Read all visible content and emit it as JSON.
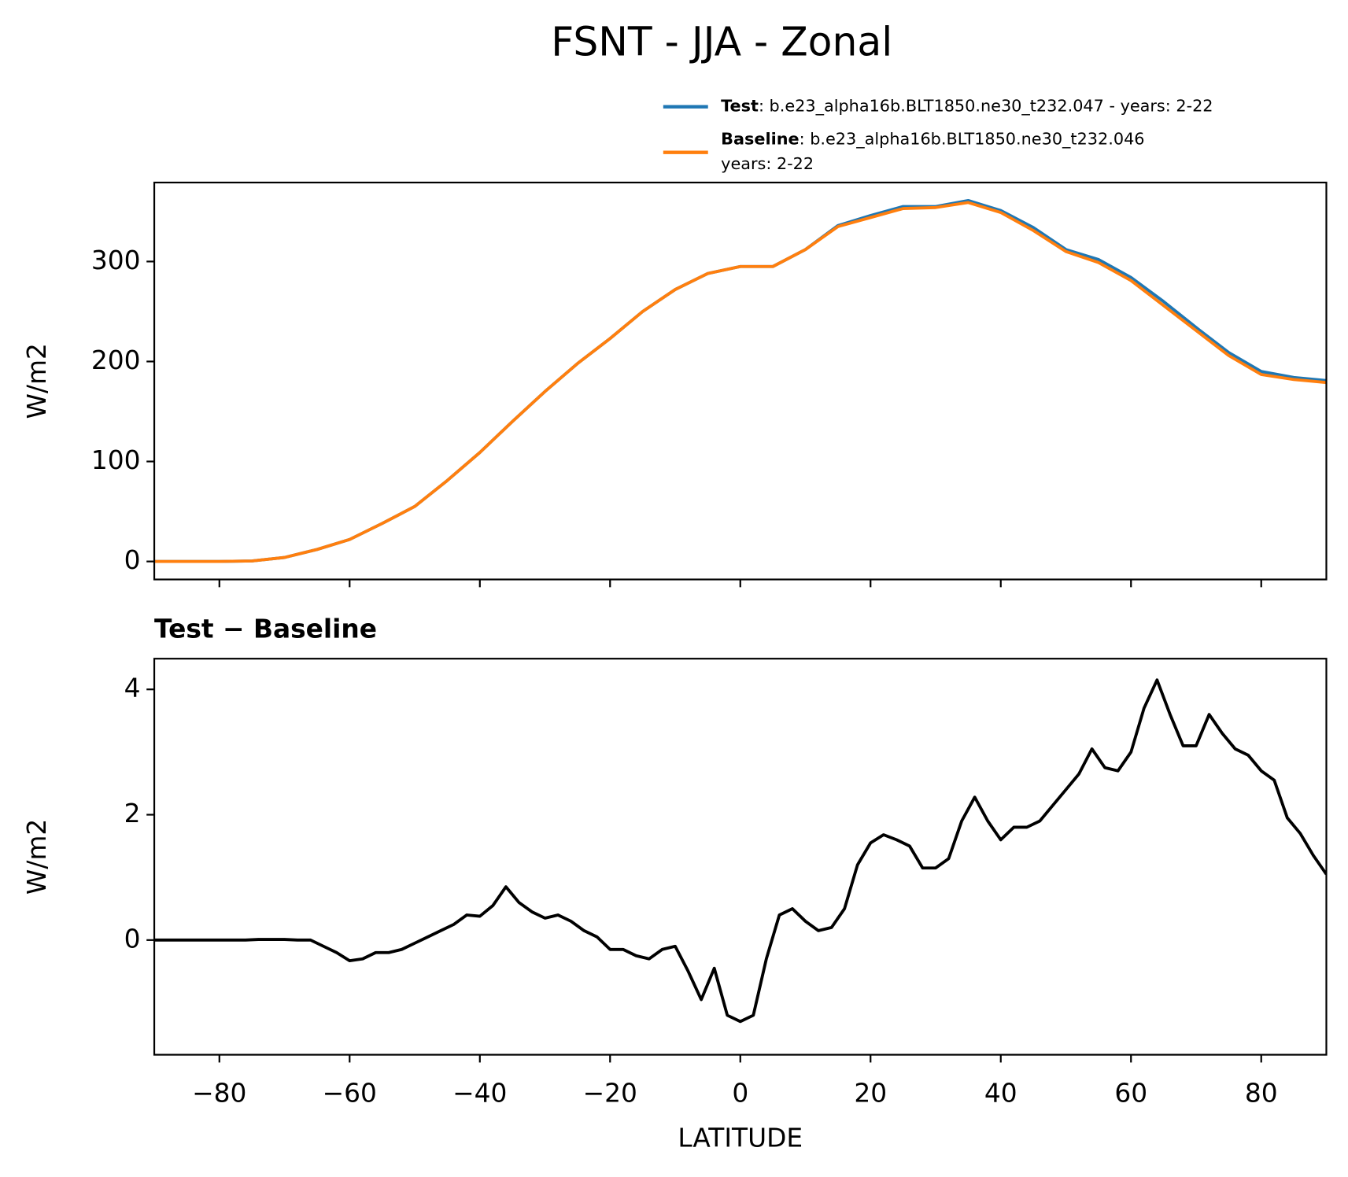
{
  "title": "FSNT - JJA - Zonal",
  "chart_data": [
    {
      "type": "line",
      "ylabel": "W/m2",
      "x": [
        -90,
        -85,
        -80,
        -75,
        -70,
        -65,
        -60,
        -55,
        -50,
        -45,
        -40,
        -35,
        -30,
        -25,
        -20,
        -15,
        -10,
        -5,
        0,
        5,
        10,
        15,
        20,
        25,
        30,
        35,
        40,
        45,
        50,
        55,
        60,
        65,
        70,
        75,
        80,
        85,
        90
      ],
      "series": [
        {
          "name": "Test",
          "description_lines": [
            ": b.e23_alpha16b.BLT1850.ne30_t232.047 - years: 2-22"
          ],
          "color": "#1f77b4",
          "values": [
            0,
            0,
            0,
            0.5,
            4,
            12,
            22,
            38,
            55,
            81,
            109,
            140,
            170,
            198,
            223,
            250,
            272,
            288,
            295,
            295,
            312,
            336,
            346,
            355,
            355,
            361,
            351,
            334,
            312,
            302,
            284,
            260,
            234,
            209,
            190,
            184,
            181
          ]
        },
        {
          "name": "Baseline",
          "description_lines": [
            ": b.e23_alpha16b.BLT1850.ne30_t232.046",
            "years: 2-22"
          ],
          "color": "#ff7f0e",
          "values": [
            0,
            0,
            0,
            0.5,
            4,
            12,
            22,
            38,
            55,
            81,
            109,
            140,
            170,
            198,
            223,
            250,
            272,
            288,
            295,
            295,
            312,
            335,
            344,
            353,
            354,
            359,
            349,
            331,
            310,
            299,
            281,
            256,
            231,
            206,
            187,
            182,
            179
          ]
        }
      ],
      "xlim": [
        -90,
        90
      ],
      "xticks": [
        -80,
        -60,
        -40,
        -20,
        0,
        20,
        40,
        60,
        80
      ],
      "ylim": [
        -18,
        379
      ],
      "yticks": [
        0,
        100,
        200,
        300
      ]
    },
    {
      "type": "line",
      "title": "Test − Baseline",
      "xlabel": "LATITUDE",
      "ylabel": "W/m2",
      "x": [
        -90,
        -88,
        -86,
        -84,
        -82,
        -80,
        -78,
        -76,
        -74,
        -72,
        -70,
        -68,
        -66,
        -64,
        -62,
        -60,
        -58,
        -56,
        -54,
        -52,
        -50,
        -48,
        -46,
        -44,
        -42,
        -40,
        -38,
        -36,
        -34,
        -32,
        -30,
        -28,
        -26,
        -24,
        -22,
        -20,
        -18,
        -16,
        -14,
        -12,
        -10,
        -8,
        -6,
        -4,
        -2,
        0,
        2,
        4,
        6,
        8,
        10,
        12,
        14,
        16,
        18,
        20,
        22,
        24,
        26,
        28,
        30,
        32,
        34,
        36,
        38,
        40,
        42,
        44,
        46,
        48,
        50,
        52,
        54,
        56,
        58,
        60,
        62,
        64,
        66,
        68,
        70,
        72,
        74,
        76,
        78,
        80,
        82,
        84,
        86,
        88,
        90
      ],
      "series": [
        {
          "name": "Test − Baseline",
          "color": "#000000",
          "values": [
            0,
            0,
            0,
            0,
            0,
            0,
            0,
            0,
            0.01,
            0.01,
            0.01,
            0,
            0,
            -0.1,
            -0.2,
            -0.33,
            -0.3,
            -0.2,
            -0.2,
            -0.15,
            -0.05,
            0.05,
            0.15,
            0.25,
            0.4,
            0.38,
            0.55,
            0.85,
            0.6,
            0.45,
            0.35,
            0.4,
            0.3,
            0.15,
            0.05,
            -0.15,
            -0.15,
            -0.25,
            -0.3,
            -0.15,
            -0.1,
            -0.5,
            -0.95,
            -0.45,
            -1.2,
            -1.3,
            -1.2,
            -0.3,
            0.4,
            0.5,
            0.3,
            0.15,
            0.2,
            0.5,
            1.2,
            1.55,
            1.68,
            1.6,
            1.5,
            1.15,
            1.15,
            1.3,
            1.9,
            2.28,
            1.9,
            1.6,
            1.8,
            1.8,
            1.9,
            2.15,
            2.4,
            2.65,
            3.05,
            2.75,
            2.7,
            3.0,
            3.7,
            4.15,
            3.6,
            3.1,
            3.1,
            3.6,
            3.3,
            3.05,
            2.95,
            2.7,
            2.55,
            1.95,
            1.7,
            1.35,
            1.05
          ]
        }
      ],
      "xlim": [
        -90,
        90
      ],
      "xticks": [
        {
          "value": -80,
          "label": "−80"
        },
        {
          "value": -60,
          "label": "−60"
        },
        {
          "value": -40,
          "label": "−40"
        },
        {
          "value": -20,
          "label": "−20"
        },
        0,
        20,
        40,
        60,
        80
      ],
      "ylim": [
        -1.83,
        4.49
      ],
      "yticks": [
        0,
        2,
        4
      ]
    }
  ]
}
